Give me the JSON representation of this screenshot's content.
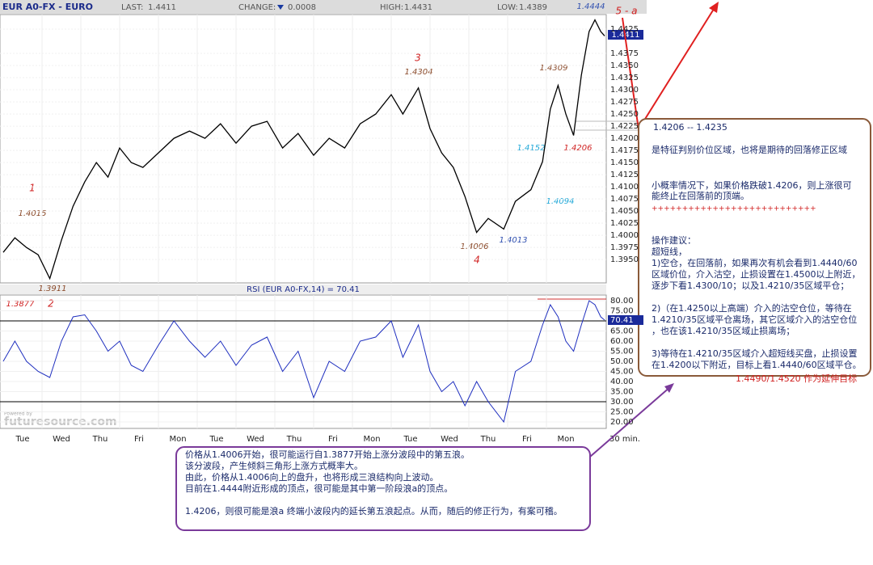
{
  "header": {
    "symbol": "EUR A0-FX - EURO",
    "last_label": "LAST:",
    "last_value": "1.4411",
    "change_label": "CHANGE:",
    "change_value": "0.0008",
    "high_label": "HIGH:",
    "high_value": "1.4431",
    "low_label": "LOW:",
    "low_value": "1.4389"
  },
  "chart_data": {
    "type": "line",
    "color": "#000000",
    "rsi_color": "#1f2fbf",
    "interval": "30 min.",
    "categories": [
      "Tue",
      "Wed",
      "Thu",
      "Fri",
      "Mon",
      "Tue",
      "Wed",
      "Thu",
      "Fri",
      "Mon",
      "Tue",
      "Wed",
      "Thu",
      "Fri",
      "Mon"
    ],
    "xlim": [
      0,
      15.5
    ],
    "x": [
      0,
      0.3,
      0.6,
      0.9,
      1.2,
      1.5,
      1.8,
      2.1,
      2.4,
      2.7,
      3.0,
      3.3,
      3.6,
      4.0,
      4.4,
      4.8,
      5.2,
      5.6,
      6.0,
      6.4,
      6.8,
      7.2,
      7.6,
      8.0,
      8.4,
      8.8,
      9.2,
      9.6,
      10.0,
      10.3,
      10.7,
      11.0,
      11.3,
      11.6,
      11.9,
      12.2,
      12.5,
      12.9,
      13.2,
      13.6,
      13.9,
      14.1,
      14.3,
      14.5,
      14.7,
      14.9,
      15.1,
      15.25,
      15.4,
      15.5
    ],
    "values": [
      1.3965,
      1.3995,
      1.3975,
      1.396,
      1.3911,
      1.399,
      1.406,
      1.411,
      1.415,
      1.412,
      1.418,
      1.415,
      1.414,
      1.417,
      1.42,
      1.4215,
      1.42,
      1.423,
      1.419,
      1.4225,
      1.4235,
      1.418,
      1.421,
      1.4165,
      1.42,
      1.418,
      1.423,
      1.425,
      1.429,
      1.425,
      1.4304,
      1.422,
      1.417,
      1.414,
      1.408,
      1.4006,
      1.4035,
      1.4013,
      1.407,
      1.4094,
      1.4152,
      1.426,
      1.4309,
      1.425,
      1.4206,
      1.433,
      1.442,
      1.4444,
      1.442,
      1.4411
    ],
    "ylim": [
      1.3902,
      1.4455
    ],
    "yticks": [
      {
        "value": 1.395,
        "label": "1.3950"
      },
      {
        "value": 1.3975,
        "label": "1.3975"
      },
      {
        "value": 1.4,
        "label": "1.4000"
      },
      {
        "value": 1.4025,
        "label": "1.4025"
      },
      {
        "value": 1.405,
        "label": "1.4050"
      },
      {
        "value": 1.4075,
        "label": "1.4075"
      },
      {
        "value": 1.41,
        "label": "1.4100"
      },
      {
        "value": 1.4125,
        "label": "1.4125"
      },
      {
        "value": 1.415,
        "label": "1.4150"
      },
      {
        "value": 1.4175,
        "label": "1.4175"
      },
      {
        "value": 1.42,
        "label": "1.4200"
      },
      {
        "value": 1.4225,
        "label": "1.4225"
      },
      {
        "value": 1.425,
        "label": "1.4250"
      },
      {
        "value": 1.4275,
        "label": "1.4275"
      },
      {
        "value": 1.43,
        "label": "1.4300"
      },
      {
        "value": 1.4325,
        "label": "1.4325"
      },
      {
        "value": 1.435,
        "label": "1.4350"
      },
      {
        "value": 1.4375,
        "label": "1.4375"
      },
      {
        "value": 1.4425,
        "label": "1.4425"
      }
    ],
    "rsi": {
      "title": "RSI (EUR A0-FX,14) = 70.41",
      "values": [
        50,
        60,
        50,
        45,
        42,
        60,
        72,
        73,
        65,
        55,
        60,
        48,
        45,
        58,
        70,
        60,
        52,
        60,
        48,
        58,
        62,
        45,
        55,
        32,
        50,
        45,
        60,
        62,
        70,
        52,
        68,
        45,
        35,
        40,
        28,
        40,
        30,
        20,
        45,
        50,
        68,
        78,
        72,
        60,
        55,
        68,
        80,
        78,
        72,
        70.41
      ],
      "ylim": [
        16.8,
        82.8
      ],
      "yticks": [
        {
          "value": 20,
          "label": "20.00"
        },
        {
          "value": 25,
          "label": "25.00"
        },
        {
          "value": 30,
          "label": "30.00"
        },
        {
          "value": 35,
          "label": "35.00"
        },
        {
          "value": 40,
          "label": "40.00"
        },
        {
          "value": 45,
          "label": "45.00"
        },
        {
          "value": 50,
          "label": "50.00"
        },
        {
          "value": 55,
          "label": "55.00"
        },
        {
          "value": 60,
          "label": "60.00"
        },
        {
          "value": 65,
          "label": "65.00"
        },
        {
          "value": 70,
          "label": "70.00"
        },
        {
          "value": 75,
          "label": "75.00"
        },
        {
          "value": 80,
          "label": "80.00"
        }
      ]
    }
  },
  "annotations": {
    "w1": "1",
    "p1": "1.4015",
    "p2a": "1.3911",
    "p2b": "1.3877",
    "w2": "2",
    "w3": "3",
    "p3": "1.4304",
    "p4a": "1.4006",
    "w4": "4",
    "p4b": "1.4013",
    "pa": "1.4152",
    "pb": "1.4094",
    "pc": "1.4206",
    "pd": "1.4309",
    "top": "1.4444",
    "w5": "5 - a"
  },
  "watermark": {
    "small": "Powered by",
    "brand": "futuresource.com"
  },
  "right_note": {
    "range": "1.4206 -- 1.4235",
    "lines": [
      "是特征判别价位区域，也将是期待的回落修正区域",
      "小概率情况下，如果价格跌破1.4206，则上涨很可",
      "能终止在回落前的顶端。",
      "+++++++++++++++++++++++++++",
      "操作建议：",
      "超短线，",
      "1)空仓，在回落前，如果再次有机会看到1.4440/60",
      "区域价位，介入沽空，止损设置在1.4500以上附近，",
      "逐步下看1.4300/10；以及1.4210/35区域平仓；",
      "2)（在1.4250以上高端）介入的沽空仓位，等待在",
      "1.4210/35区域平仓离场，其它区域介入的沽空仓位",
      "，也在该1.4210/35区域止损离场；",
      "3)等待在1.4210/35区域介入超短线买盘，止损设置",
      "在1.4200以下附近，目标上看1.4440/60区域平仓。"
    ],
    "target": "1.4490/1.4520 作为延伸目标"
  },
  "bottom_note": {
    "lines": [
      "价格从1.4006开始，很可能运行自1.3877开始上涨分波段中的第五浪。",
      "该分波段，产生倾斜三角形上涨方式概率大。",
      "由此，价格从1.4006向上的盘升，也将形成三浪结构向上波动。",
      "目前在1.4444附近形成的顶点，很可能是其中第一阶段浪a的顶点。"
    ],
    "last": "1.4206，则很可能是浪a 终端小波段内的延长第五浪起点。从而，随后的修正行为，有案可稽。"
  }
}
